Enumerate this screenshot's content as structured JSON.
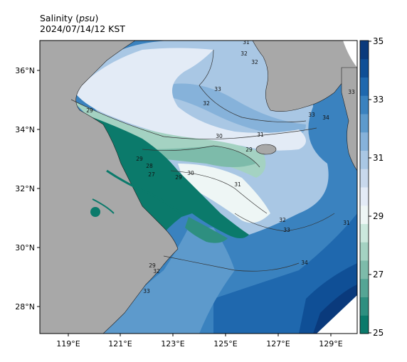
{
  "title": {
    "variable": "Salinity (",
    "unit": "psu",
    "close": ")",
    "timestamp": "2024/07/14/12 KST"
  },
  "axes": {
    "lon_ticks": [
      "119°E",
      "121°E",
      "123°E",
      "125°E",
      "127°E",
      "129°E"
    ],
    "lat_ticks": [
      "36°N",
      "34°N",
      "32°N",
      "30°N",
      "28°N"
    ]
  },
  "colorbar": {
    "ticks": [
      "35",
      "33",
      "31",
      "29",
      "27",
      "25"
    ],
    "min": 25,
    "max": 35,
    "colors": [
      "#0b7a6b",
      "#2e8f80",
      "#55a595",
      "#7dbbaa",
      "#a4d2c2",
      "#cbe8dd",
      "#eef6f5",
      "#e3ebf6",
      "#c8d8ec",
      "#a9c7e4",
      "#86b2da",
      "#5d9acc",
      "#3a82bf",
      "#1f68ae",
      "#0f4f96",
      "#0a3a7c"
    ]
  },
  "contour_labels": {
    "c31_north": "31",
    "c32_north": "32",
    "c32_east": "32",
    "c33_north": "33",
    "c30_mid": "30",
    "c31_mid": "31",
    "c29_mid": "29",
    "c29_west": "29",
    "c29_coast": "29",
    "c28_a": "28",
    "c27": "27",
    "c29_b": "29",
    "c30_b": "30",
    "c31_c": "31",
    "c32_c": "32",
    "c33_c": "33",
    "c34_c": "34",
    "c33_east": "33",
    "c33_e2": "33",
    "c34_e": "34",
    "c32_south": "32",
    "c29_south": "29",
    "c33_south": "33",
    "c32_far": "32",
    "c31_k": "31"
  }
}
